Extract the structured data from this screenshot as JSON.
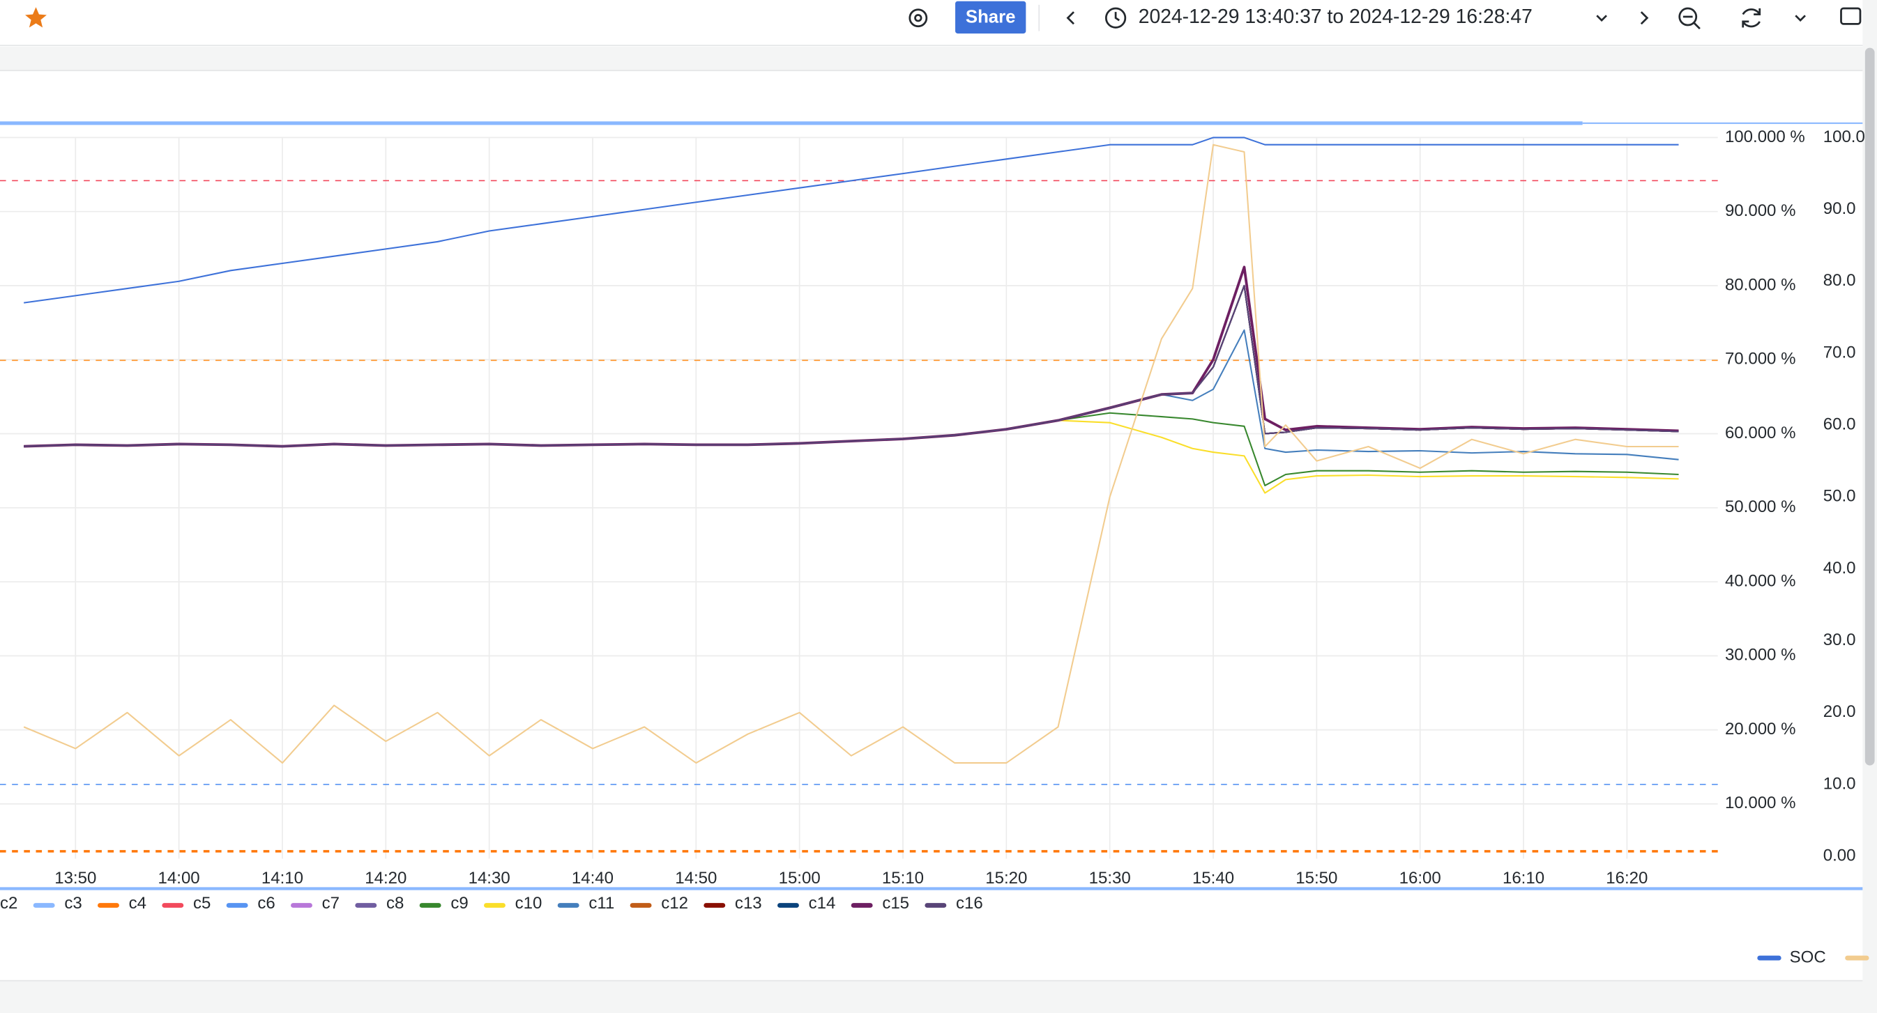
{
  "toolbar": {
    "share": "Share",
    "time_range": "2024-12-29 13:40:37 to 2024-12-29 16:28:47"
  },
  "chart_data": {
    "type": "line",
    "x": [
      "13:45",
      "13:50",
      "13:55",
      "14:00",
      "14:05",
      "14:10",
      "14:15",
      "14:20",
      "14:25",
      "14:30",
      "14:35",
      "14:40",
      "14:45",
      "14:50",
      "14:55",
      "15:00",
      "15:05",
      "15:10",
      "15:15",
      "15:20",
      "15:25",
      "15:30",
      "15:35",
      "15:38",
      "15:40",
      "15:43",
      "15:45",
      "15:47",
      "15:50",
      "15:55",
      "16:00",
      "16:05",
      "16:10",
      "16:15",
      "16:20",
      "16:25"
    ],
    "xlim": [
      "13:40:37",
      "16:28:47"
    ],
    "xticks": [
      "13:50",
      "14:00",
      "14:10",
      "14:20",
      "14:30",
      "14:40",
      "14:50",
      "15:00",
      "15:10",
      "15:20",
      "15:30",
      "15:40",
      "15:50",
      "16:00",
      "16:10",
      "16:20"
    ],
    "ylim": [
      2.6,
      100
    ],
    "yticks": [
      {
        "value": 100,
        "label": "100.000 %"
      },
      {
        "value": 90,
        "label": "90.000 %"
      },
      {
        "value": 80,
        "label": "80.000 %"
      },
      {
        "value": 70,
        "label": "70.000 %"
      },
      {
        "value": 60,
        "label": "60.000 %"
      },
      {
        "value": 50,
        "label": "50.000 %"
      },
      {
        "value": 40,
        "label": "40.000 %"
      },
      {
        "value": 30,
        "label": "30.000 %"
      },
      {
        "value": 20,
        "label": "20.000 %"
      },
      {
        "value": 10,
        "label": "10.000 %"
      }
    ],
    "y2lim": [
      0,
      100
    ],
    "y2ticks": [
      {
        "value": 100,
        "label": "100.0"
      },
      {
        "value": 90,
        "label": "90.0"
      },
      {
        "value": 80,
        "label": "80.0"
      },
      {
        "value": 70,
        "label": "70.0"
      },
      {
        "value": 60,
        "label": "60.0"
      },
      {
        "value": 50,
        "label": "50.0"
      },
      {
        "value": 40,
        "label": "40.0"
      },
      {
        "value": 30,
        "label": "30.0"
      },
      {
        "value": 20,
        "label": "20.0"
      },
      {
        "value": 10,
        "label": "10.0"
      },
      {
        "value": 0,
        "label": "0.00"
      }
    ],
    "grid": true,
    "thresholds": [
      {
        "value": 94,
        "color": "#f2495c",
        "width": 1
      },
      {
        "value": 69,
        "color": "#ff9830",
        "width": 1
      },
      {
        "value": 10,
        "color": "#5794f2",
        "width": 1
      },
      {
        "value": 0.7,
        "color": "#ff780a",
        "width": 2
      }
    ],
    "series": [
      {
        "name": "c2",
        "color": "#73bf69",
        "values": [
          58.3,
          58.5,
          58.4,
          58.6,
          58.5,
          58.3,
          58.6,
          58.4,
          58.5,
          58.6,
          58.4,
          58.5,
          58.6,
          58.5,
          58.5,
          58.7,
          59,
          59.3,
          59.8,
          60.6,
          61.8,
          63.5,
          65.3,
          65.5,
          69,
          80,
          60,
          60.2,
          60.8,
          60.7,
          60.5,
          60.8,
          60.6,
          60.7,
          60.5,
          60.3
        ]
      },
      {
        "name": "c3",
        "color": "#8ab8ff",
        "values": [
          58.3,
          58.5,
          58.4,
          58.6,
          58.5,
          58.3,
          58.6,
          58.4,
          58.5,
          58.6,
          58.4,
          58.5,
          58.6,
          58.5,
          58.5,
          58.7,
          59,
          59.3,
          59.8,
          60.6,
          61.8,
          63.5,
          65.3,
          65.5,
          69,
          80,
          60,
          60.2,
          60.8,
          60.7,
          60.5,
          60.8,
          60.6,
          60.7,
          60.5,
          60.3
        ]
      },
      {
        "name": "c4",
        "color": "#ff780a",
        "values": [
          58.3,
          58.5,
          58.4,
          58.6,
          58.5,
          58.3,
          58.6,
          58.4,
          58.5,
          58.6,
          58.4,
          58.5,
          58.6,
          58.5,
          58.5,
          58.7,
          59,
          59.3,
          59.8,
          60.6,
          61.8,
          63.5,
          65.3,
          65.5,
          69,
          80,
          60,
          60.2,
          60.8,
          60.7,
          60.5,
          60.8,
          60.6,
          60.7,
          60.5,
          60.3
        ]
      },
      {
        "name": "c5",
        "color": "#f2495c",
        "values": [
          58.3,
          58.5,
          58.4,
          58.6,
          58.5,
          58.3,
          58.6,
          58.4,
          58.5,
          58.6,
          58.4,
          58.5,
          58.6,
          58.5,
          58.5,
          58.7,
          59,
          59.3,
          59.8,
          60.6,
          61.8,
          63.5,
          65.3,
          65.5,
          69,
          80,
          60,
          60.2,
          60.8,
          60.7,
          60.5,
          60.8,
          60.6,
          60.7,
          60.5,
          60.3
        ]
      },
      {
        "name": "c6",
        "color": "#5794f2",
        "values": [
          58.3,
          58.5,
          58.4,
          58.6,
          58.5,
          58.3,
          58.6,
          58.4,
          58.5,
          58.6,
          58.4,
          58.5,
          58.6,
          58.5,
          58.5,
          58.7,
          59,
          59.3,
          59.8,
          60.6,
          61.8,
          63.5,
          65.3,
          65.5,
          69,
          80,
          60,
          60.2,
          60.8,
          60.7,
          60.5,
          60.8,
          60.6,
          60.7,
          60.5,
          60.3
        ]
      },
      {
        "name": "c7",
        "color": "#b877d9",
        "values": [
          58.3,
          58.5,
          58.4,
          58.6,
          58.5,
          58.3,
          58.6,
          58.4,
          58.5,
          58.6,
          58.4,
          58.5,
          58.6,
          58.5,
          58.5,
          58.7,
          59,
          59.3,
          59.8,
          60.6,
          61.8,
          63.5,
          65.3,
          65.5,
          69,
          80,
          60,
          60.2,
          60.8,
          60.7,
          60.5,
          60.8,
          60.6,
          60.7,
          60.5,
          60.3
        ]
      },
      {
        "name": "c8",
        "color": "#705da0",
        "values": [
          58.3,
          58.5,
          58.4,
          58.6,
          58.5,
          58.3,
          58.6,
          58.4,
          58.5,
          58.6,
          58.4,
          58.5,
          58.6,
          58.5,
          58.5,
          58.7,
          59,
          59.3,
          59.8,
          60.6,
          61.8,
          63.5,
          65.3,
          65.5,
          69,
          80,
          60,
          60.2,
          60.8,
          60.7,
          60.5,
          60.8,
          60.6,
          60.7,
          60.5,
          60.3
        ]
      },
      {
        "name": "c9",
        "color": "#37872d",
        "values": [
          58.3,
          58.5,
          58.4,
          58.6,
          58.5,
          58.3,
          58.6,
          58.4,
          58.5,
          58.6,
          58.4,
          58.5,
          58.6,
          58.5,
          58.5,
          58.7,
          59,
          59.3,
          59.8,
          60.6,
          61.8,
          62.8,
          62.3,
          62,
          61.5,
          61,
          53,
          54.5,
          55,
          55,
          54.8,
          55,
          54.8,
          54.9,
          54.8,
          54.5
        ]
      },
      {
        "name": "c10",
        "color": "#fade2a",
        "values": [
          58.3,
          58.5,
          58.4,
          58.6,
          58.5,
          58.3,
          58.6,
          58.4,
          58.5,
          58.6,
          58.4,
          58.5,
          58.6,
          58.5,
          58.5,
          58.7,
          59,
          59.3,
          59.8,
          60.6,
          61.8,
          61.5,
          59.5,
          58,
          57.5,
          57,
          52,
          53.8,
          54.3,
          54.4,
          54.2,
          54.3,
          54.3,
          54.2,
          54.1,
          53.9
        ]
      },
      {
        "name": "c11",
        "color": "#447ebc",
        "values": [
          58.3,
          58.5,
          58.4,
          58.6,
          58.5,
          58.3,
          58.6,
          58.4,
          58.5,
          58.6,
          58.4,
          58.5,
          58.6,
          58.5,
          58.5,
          58.7,
          59,
          59.3,
          59.8,
          60.6,
          61.8,
          63.5,
          65.3,
          64.5,
          66,
          74,
          58,
          57.5,
          57.8,
          57.6,
          57.7,
          57.4,
          57.6,
          57.3,
          57.2,
          56.5
        ]
      },
      {
        "name": "c12",
        "color": "#c15c17",
        "values": [
          58.3,
          58.5,
          58.4,
          58.6,
          58.5,
          58.3,
          58.6,
          58.4,
          58.5,
          58.6,
          58.4,
          58.5,
          58.6,
          58.5,
          58.5,
          58.7,
          59,
          59.3,
          59.8,
          60.6,
          61.8,
          63.5,
          65.3,
          65.5,
          69,
          80,
          60,
          60.2,
          60.8,
          60.7,
          60.5,
          60.8,
          60.6,
          60.7,
          60.5,
          60.3
        ]
      },
      {
        "name": "c13",
        "color": "#890f02",
        "values": [
          58.3,
          58.5,
          58.4,
          58.6,
          58.5,
          58.3,
          58.6,
          58.4,
          58.5,
          58.6,
          58.4,
          58.5,
          58.6,
          58.5,
          58.5,
          58.7,
          59,
          59.3,
          59.8,
          60.6,
          61.8,
          63.5,
          65.3,
          65.5,
          69,
          80,
          60,
          60.2,
          60.8,
          60.7,
          60.5,
          60.8,
          60.6,
          60.7,
          60.5,
          60.3
        ]
      },
      {
        "name": "c14",
        "color": "#0a437c",
        "values": [
          58.3,
          58.5,
          58.4,
          58.6,
          58.5,
          58.3,
          58.6,
          58.4,
          58.5,
          58.6,
          58.4,
          58.5,
          58.6,
          58.5,
          58.5,
          58.7,
          59,
          59.3,
          59.8,
          60.6,
          61.8,
          63.5,
          65.3,
          65.5,
          69,
          80,
          60,
          60.2,
          60.8,
          60.7,
          60.5,
          60.8,
          60.6,
          60.7,
          60.5,
          60.3
        ]
      },
      {
        "name": "c15",
        "color": "#6d1f62",
        "values": [
          58.3,
          58.5,
          58.4,
          58.6,
          58.5,
          58.3,
          58.6,
          58.4,
          58.5,
          58.6,
          58.4,
          58.5,
          58.6,
          58.5,
          58.5,
          58.7,
          59,
          59.3,
          59.8,
          60.6,
          61.8,
          63.5,
          65.3,
          65.5,
          70,
          82.5,
          62,
          60.5,
          61,
          60.8,
          60.6,
          60.9,
          60.7,
          60.8,
          60.6,
          60.4
        ]
      },
      {
        "name": "c16",
        "color": "#584477",
        "values": [
          58.3,
          58.5,
          58.4,
          58.6,
          58.5,
          58.3,
          58.6,
          58.4,
          58.5,
          58.6,
          58.4,
          58.5,
          58.6,
          58.5,
          58.5,
          58.7,
          59,
          59.3,
          59.8,
          60.6,
          61.8,
          63.5,
          65.3,
          65.5,
          69,
          80,
          60,
          60.2,
          60.8,
          60.7,
          60.5,
          60.8,
          60.6,
          60.7,
          60.5,
          60.3
        ]
      },
      {
        "name": "SOC",
        "color": "#3d71d9",
        "axis": "y2",
        "values": [
          77,
          78,
          79,
          80,
          81.5,
          82.5,
          83.5,
          84.5,
          85.5,
          87,
          88,
          89,
          90,
          91,
          92,
          93,
          94,
          95,
          96,
          97,
          98,
          99,
          99,
          99,
          100,
          100,
          99,
          99,
          99,
          99,
          99,
          99,
          99,
          99,
          99,
          99
        ]
      },
      {
        "color": "#f2cc8f",
        "axis": "y2",
        "values": [
          18,
          15,
          20,
          14,
          19,
          13,
          21,
          16,
          20,
          14,
          19,
          15,
          18,
          13,
          17,
          20,
          14,
          18,
          13,
          13,
          18,
          50,
          72,
          79,
          99,
          98,
          57,
          60,
          55,
          57,
          54,
          58,
          56,
          58,
          57,
          57
        ]
      }
    ]
  }
}
